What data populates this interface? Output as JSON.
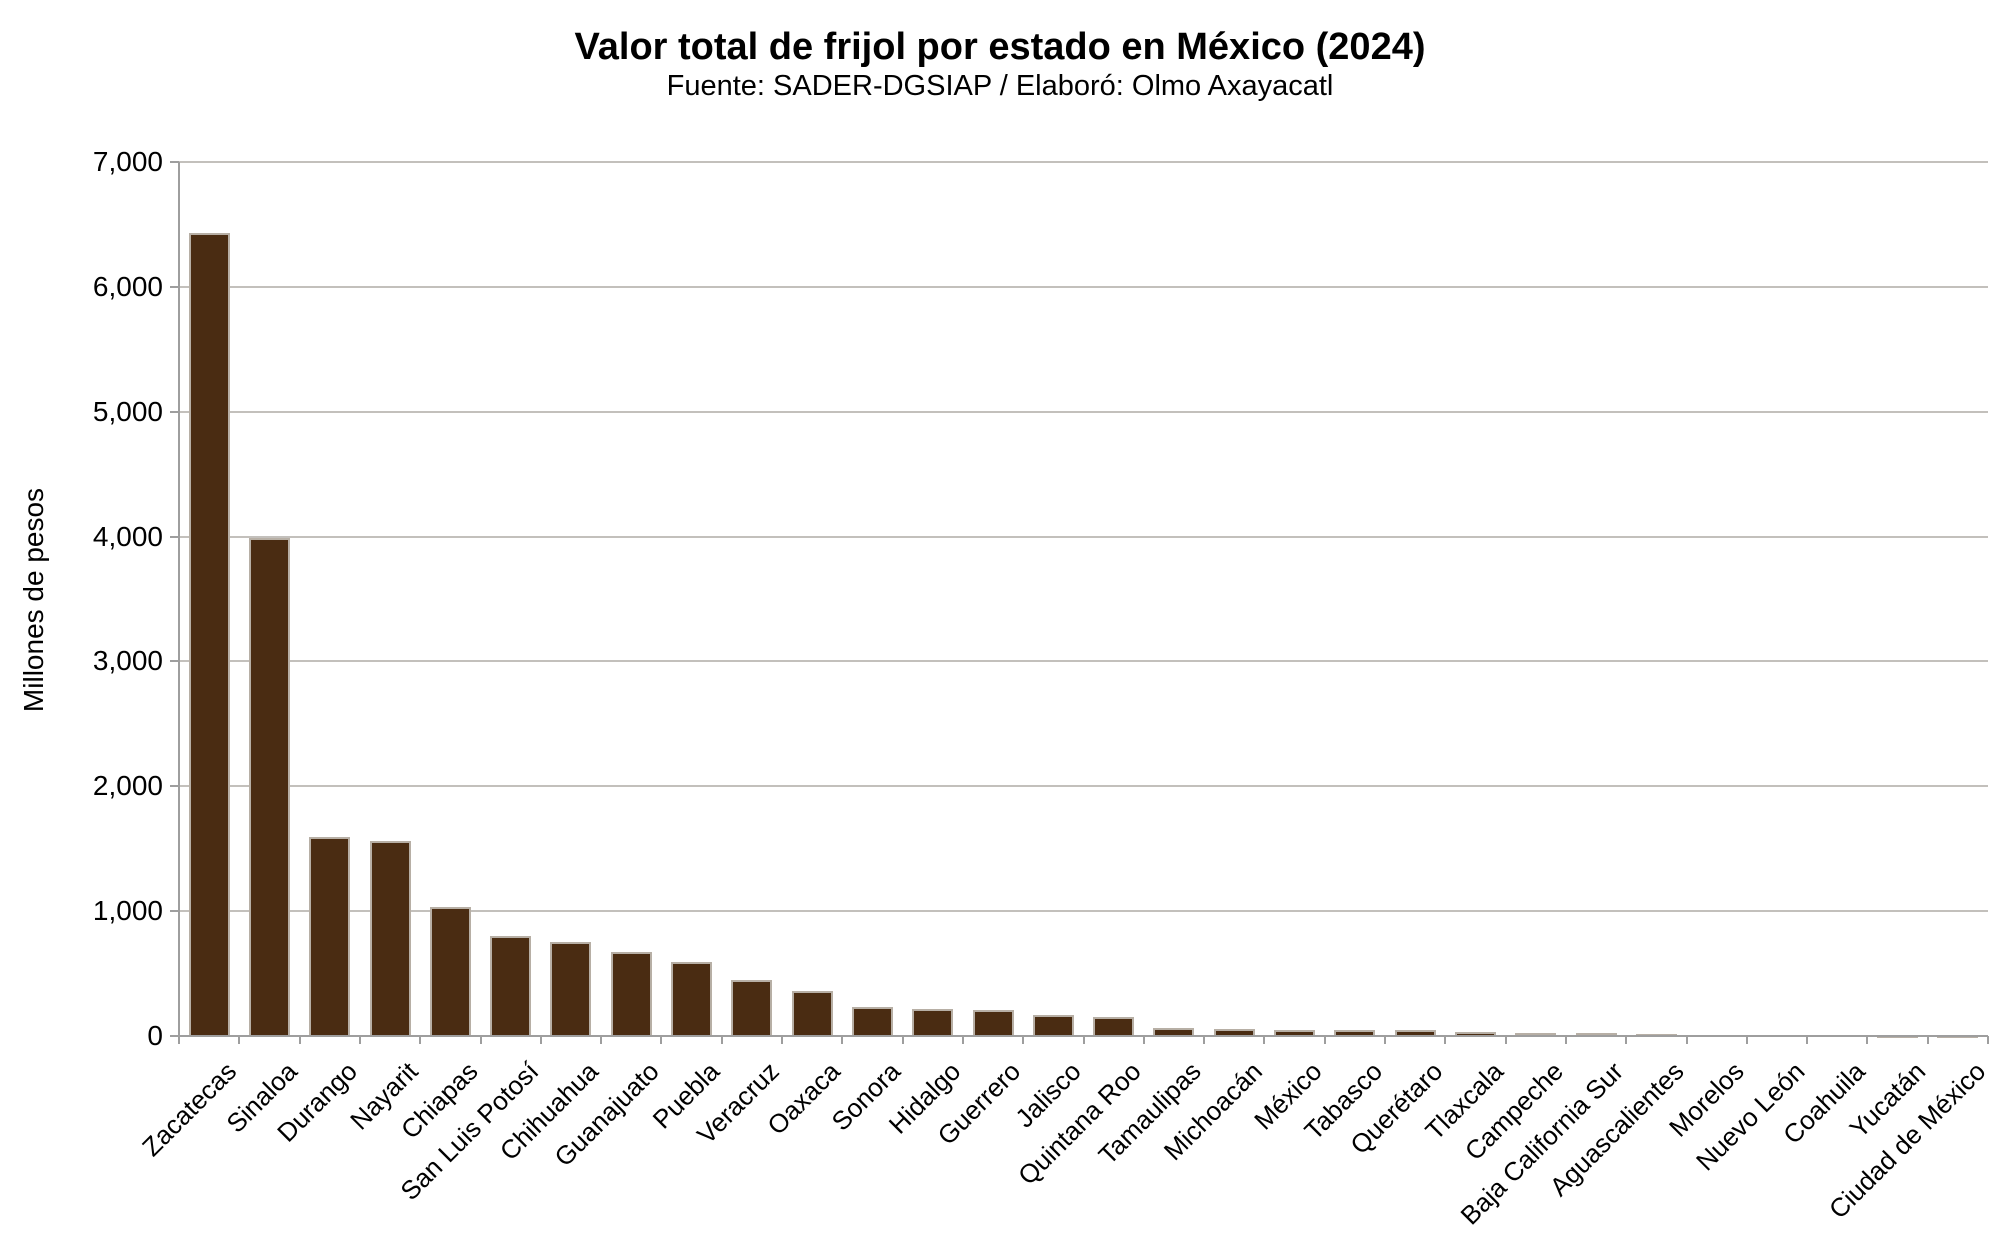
{
  "header": {
    "title": "Valor total de frijol por estado en México (2024)",
    "subtitle": "Fuente: SADER-DGSIAP / Elaboró: Olmo Axayacatl"
  },
  "chart_data": {
    "type": "bar",
    "title": "Valor total de frijol por estado en México (2024)",
    "subtitle": "Fuente: SADER-DGSIAP / Elaboró: Olmo Axayacatl",
    "xlabel": "",
    "ylabel": "Millones de pesos",
    "ylim": [
      0,
      7000
    ],
    "ytick_step": 1000,
    "ytick_labels": [
      "0",
      "1,000",
      "2,000",
      "3,000",
      "4,000",
      "5,000",
      "6,000",
      "7,000"
    ],
    "grid": true,
    "legend": "none",
    "bar_color": "#4a2c12",
    "bar_border_color": "#b7afa5",
    "gridline_color": "#c3c0bc",
    "axis_color": "#9e9e9e",
    "categories": [
      "Zacatecas",
      "Sinaloa",
      "Durango",
      "Nayarit",
      "Chiapas",
      "San Luis Potosí",
      "Chihuahua",
      "Guanajuato",
      "Puebla",
      "Veracruz",
      "Oaxaca",
      "Sonora",
      "Hidalgo",
      "Guerrero",
      "Jalisco",
      "Quintana Roo",
      "Tamaulipas",
      "Michoacán",
      "México",
      "Tabasco",
      "Querétaro",
      "Tlaxcala",
      "Campeche",
      "Baja California Sur",
      "Aguascalientes",
      "Morelos",
      "Nuevo León",
      "Coahuila",
      "Yucatán",
      "Ciudad de México"
    ],
    "values": [
      6430,
      3990,
      1590,
      1565,
      1030,
      800,
      750,
      670,
      590,
      445,
      360,
      235,
      215,
      210,
      170,
      155,
      65,
      60,
      50,
      48,
      45,
      30,
      27,
      22,
      16,
      12,
      8,
      5,
      3,
      1
    ]
  }
}
